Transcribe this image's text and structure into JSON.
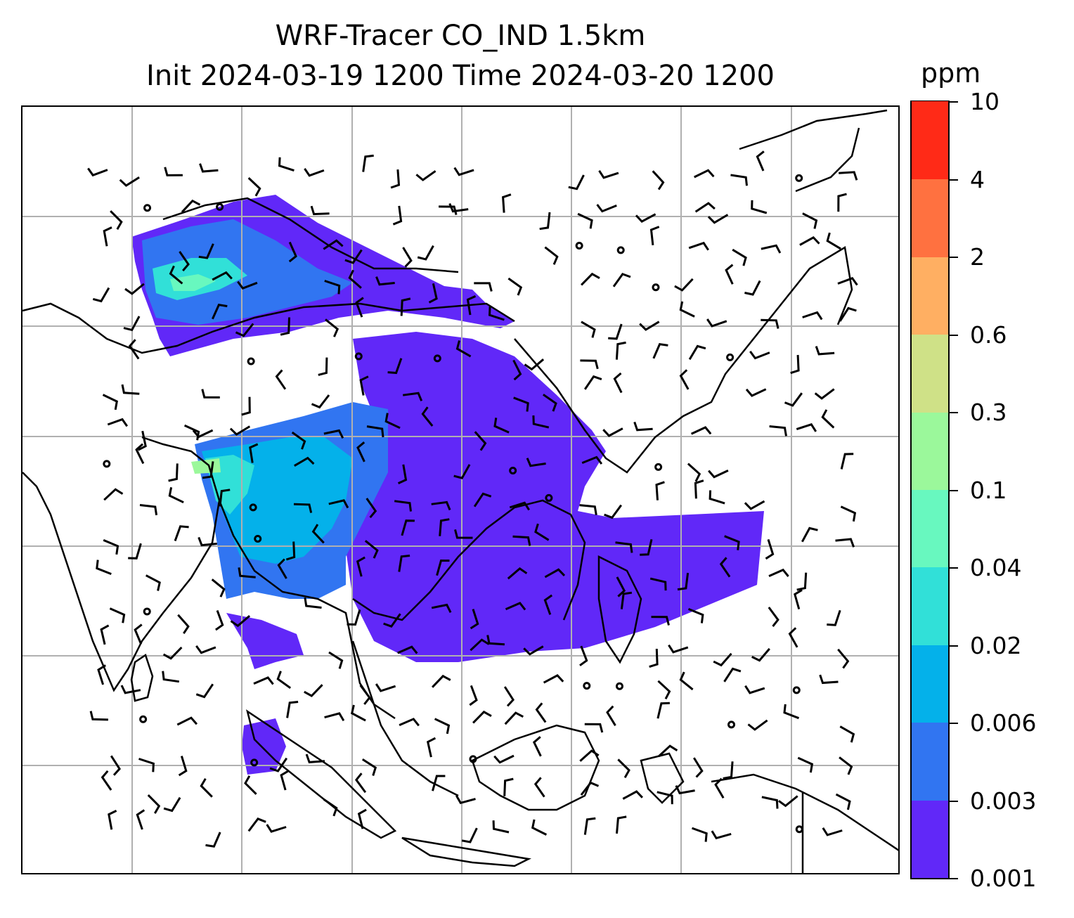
{
  "title": {
    "line1": "WRF-Tracer CO_IND 1.5km",
    "line2": "Init 2024-03-19 1200 Time 2024-03-20 1200"
  },
  "colorbar": {
    "unit": "ppm",
    "ticks": [
      "0.001",
      "0.003",
      "0.006",
      "0.02",
      "0.04",
      "0.1",
      "0.3",
      "0.6",
      "2",
      "4",
      "10"
    ],
    "colors": [
      "#6128f8",
      "#3175f1",
      "#04b1ea",
      "#31e0d8",
      "#68f8bf",
      "#9bf89b",
      "#cfe187",
      "#ffaf62",
      "#ff7140",
      "#ff2a17"
    ]
  },
  "colors": {
    "coastline": "#000000",
    "grid": "#b0b0b0"
  }
}
